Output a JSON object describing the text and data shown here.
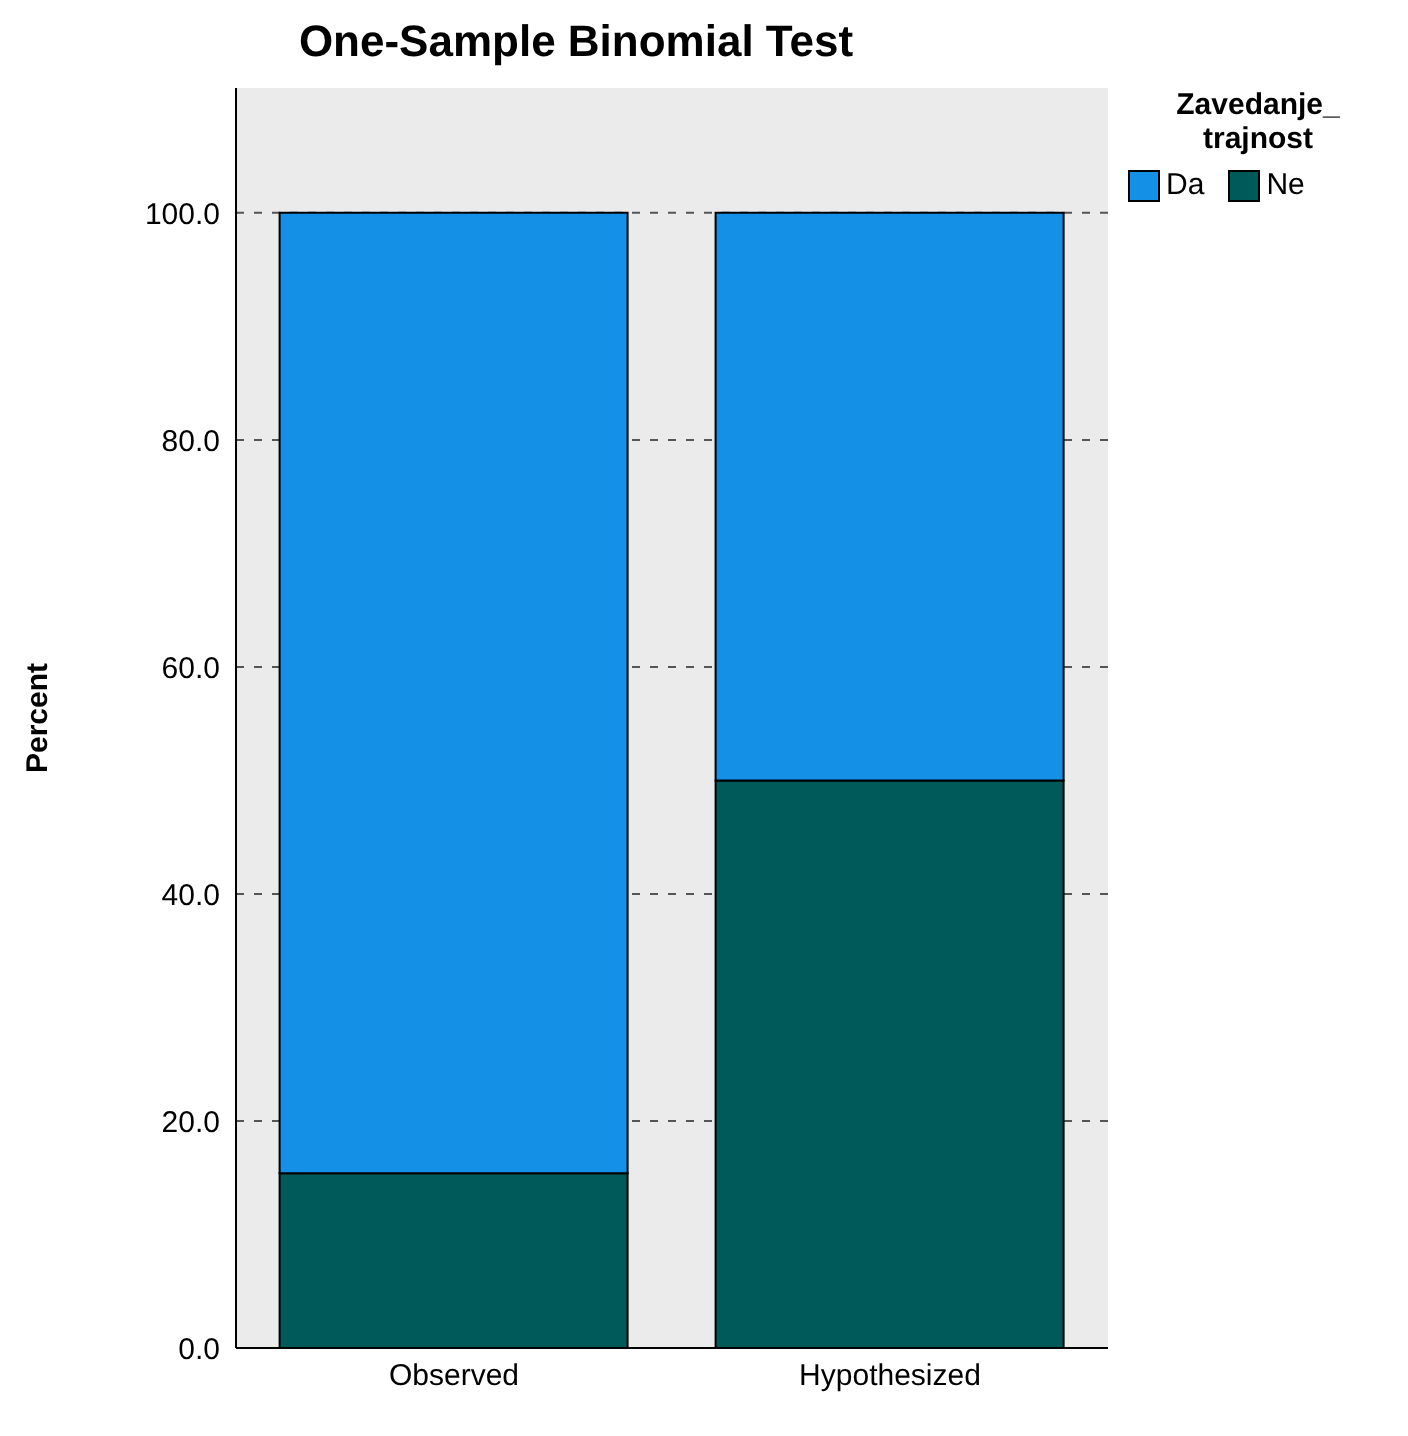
{
  "chart_data": {
    "type": "bar",
    "title": "One-Sample Binomial Test",
    "ylabel": "Percent",
    "legend_title": "Zavedanje_ trajnost",
    "categories": [
      "Observed",
      "Hypothesized"
    ],
    "series": [
      {
        "name": "Ne",
        "color": "#005a5a",
        "values": [
          15.4,
          50
        ]
      },
      {
        "name": "Da",
        "color": "#1490e6",
        "values": [
          84.6,
          50
        ]
      }
    ],
    "stacked": true,
    "ylim": [
      0,
      111
    ],
    "yticks": [
      {
        "value": 0,
        "label": "0.0"
      },
      {
        "value": 20,
        "label": "20.0"
      },
      {
        "value": 40,
        "label": "40.0"
      },
      {
        "value": 60,
        "label": "60.0"
      },
      {
        "value": 80,
        "label": "80.0"
      },
      {
        "value": 100,
        "label": "100.0"
      }
    ],
    "grid": "y",
    "legend": "top right"
  }
}
